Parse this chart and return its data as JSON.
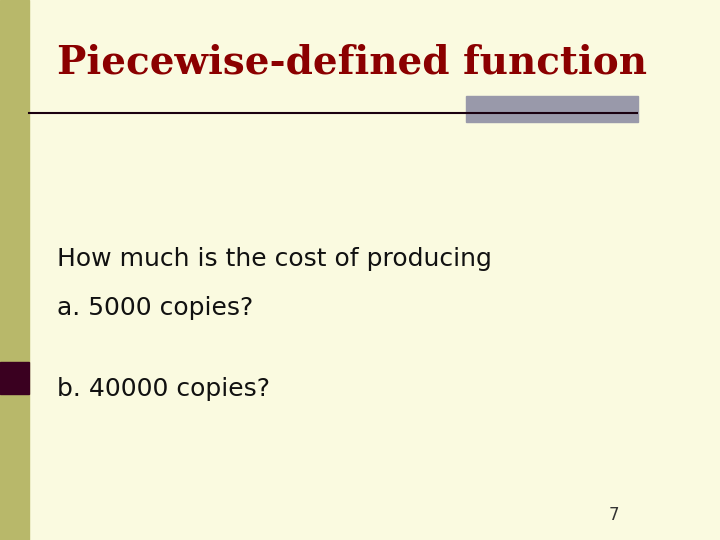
{
  "title": "Piecewise-defined function",
  "title_color": "#8B0000",
  "title_fontsize": 28,
  "title_bold": true,
  "background_color": "#FAFAE0",
  "left_bar_color": "#B8B86A",
  "right_bar_color": "#9999AA",
  "separator_line_color": "#1a0010",
  "body_text_1": "How much is the cost of producing",
  "body_text_2": "a. 5000 copies?",
  "body_text_3": "b. 40000 copies?",
  "body_fontsize": 18,
  "body_text_color": "#111111",
  "page_number": "7",
  "page_number_color": "#333333",
  "page_number_fontsize": 12,
  "dark_accent_color": "#3a0020"
}
